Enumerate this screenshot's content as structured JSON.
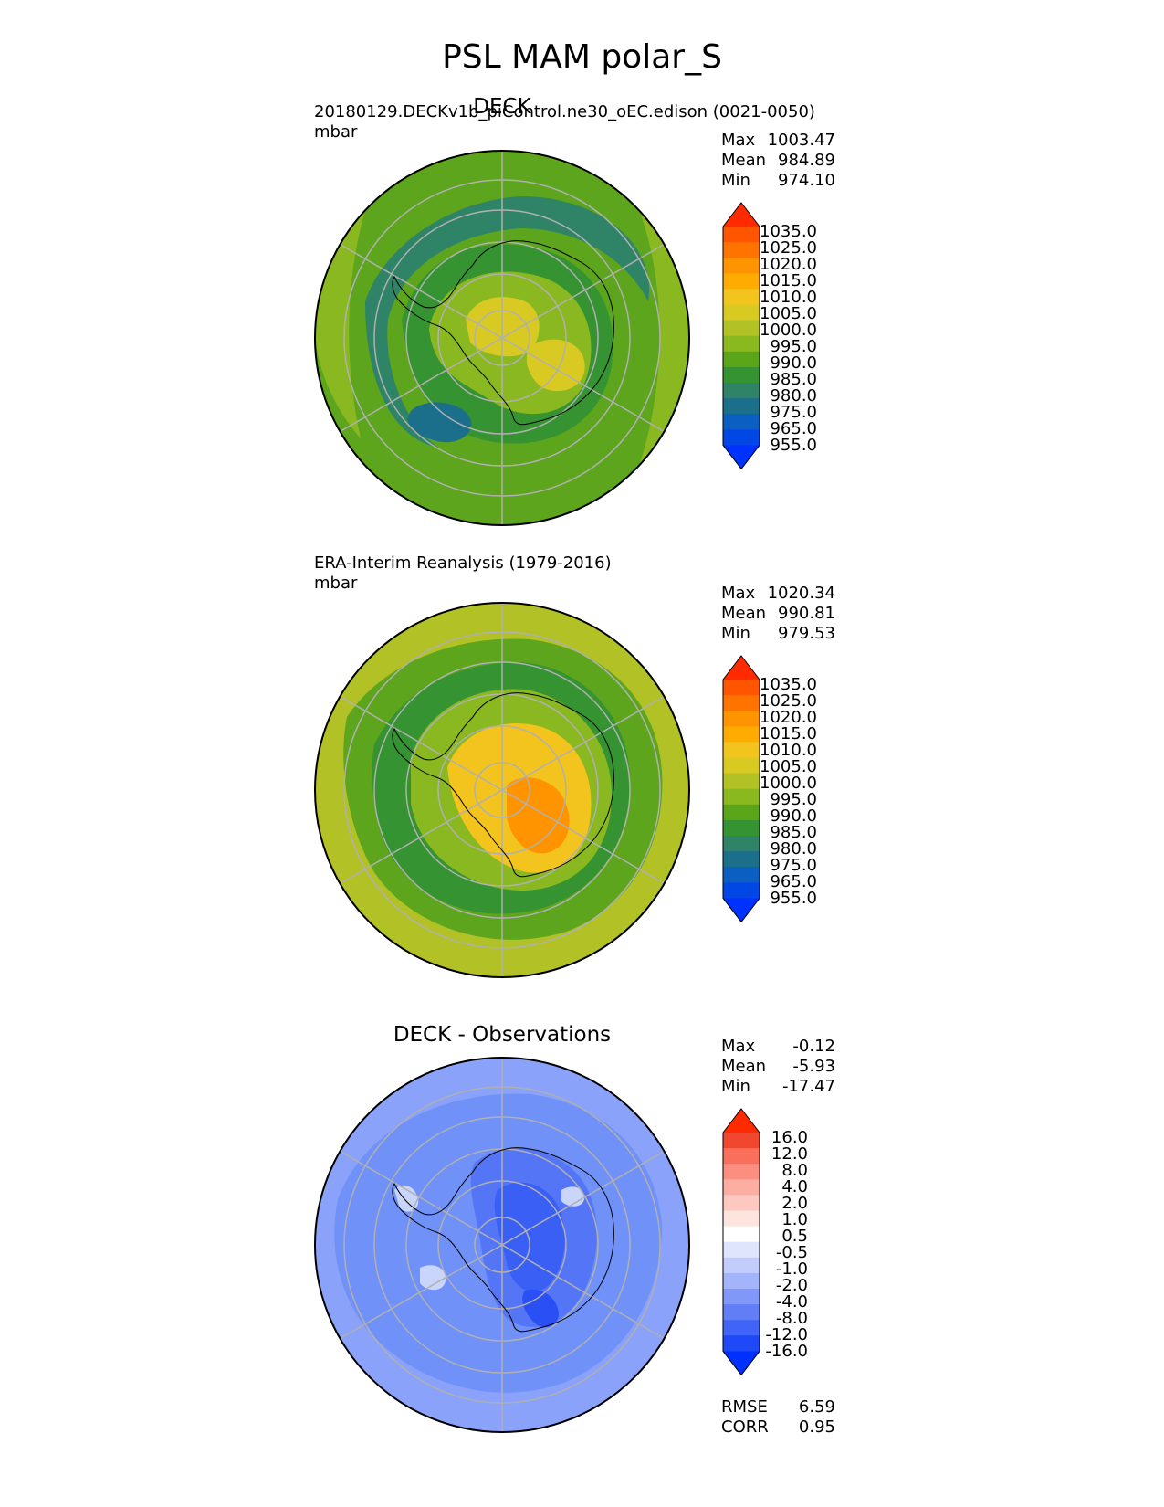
{
  "figure": {
    "title": "PSL MAM polar_S",
    "panels": [
      {
        "id": "test",
        "center_title": "DECK",
        "left_title": "20180129.DECKv1b_piControl.ne30_oEC.edison (0021-0050)",
        "units": "mbar",
        "stats": [
          {
            "label": "Max",
            "value": "1003.47"
          },
          {
            "label": "Mean",
            "value": "984.89"
          },
          {
            "label": "Min",
            "value": "974.10"
          }
        ],
        "colorbar": {
          "levels": [
            "1035.0",
            "1025.0",
            "1020.0",
            "1015.0",
            "1010.0",
            "1005.0",
            "1000.0",
            "995.0",
            "990.0",
            "985.0",
            "980.0",
            "975.0",
            "965.0",
            "955.0"
          ],
          "colors": [
            "#ff2a00",
            "#ff5400",
            "#ff7400",
            "#ff9400",
            "#ffab00",
            "#f3c41d",
            "#d9ca23",
            "#b1c126",
            "#8ab81f",
            "#5aa51a",
            "#359331",
            "#2f8468",
            "#1b6f8b",
            "#0a5fc0",
            "#0047e6",
            "#0032ff"
          ]
        },
        "map_fills": [
          "#5ca51c",
          "#8ab820",
          "#359331",
          "#2f8468",
          "#d9ca23",
          "#1b6f8b"
        ]
      },
      {
        "id": "reference",
        "center_title": "",
        "left_title": "ERA-Interim Reanalysis (1979-2016)",
        "units": "mbar",
        "stats": [
          {
            "label": "Max",
            "value": "1020.34"
          },
          {
            "label": "Mean",
            "value": "990.81"
          },
          {
            "label": "Min",
            "value": "979.53"
          }
        ],
        "colorbar": {
          "levels": [
            "1035.0",
            "1025.0",
            "1020.0",
            "1015.0",
            "1010.0",
            "1005.0",
            "1000.0",
            "995.0",
            "990.0",
            "985.0",
            "980.0",
            "975.0",
            "965.0",
            "955.0"
          ],
          "colors": [
            "#ff2a00",
            "#ff5400",
            "#ff7400",
            "#ff9400",
            "#ffab00",
            "#f3c41d",
            "#d9ca23",
            "#b1c126",
            "#8ab81f",
            "#5aa51a",
            "#359331",
            "#2f8468",
            "#1b6f8b",
            "#0a5fc0",
            "#0047e6",
            "#0032ff"
          ]
        },
        "map_fills": [
          "#b1c126",
          "#8ab820",
          "#5ca51c",
          "#359331",
          "#f3c41d",
          "#ff9400"
        ]
      },
      {
        "id": "diff",
        "center_title": "DECK - Observations",
        "left_title": "",
        "units": "",
        "stats": [
          {
            "label": "Max",
            "value": "-0.12"
          },
          {
            "label": "Mean",
            "value": "-5.93"
          },
          {
            "label": "Min",
            "value": "-17.47"
          }
        ],
        "metrics": [
          {
            "label": "RMSE",
            "value": "6.59"
          },
          {
            "label": "CORR",
            "value": "0.95"
          }
        ],
        "colorbar": {
          "levels": [
            "16.0",
            "12.0",
            "8.0",
            "4.0",
            "2.0",
            "1.0",
            "0.5",
            "-0.5",
            "-1.0",
            "-2.0",
            "-4.0",
            "-8.0",
            "-12.0",
            "-16.0"
          ],
          "colors": [
            "#ff2a00",
            "#f2472f",
            "#f8705b",
            "#fb8e7f",
            "#fcaea2",
            "#fdc8c0",
            "#fde4df",
            "#ffffff",
            "#dfe5fd",
            "#c2cdfb",
            "#a4b4fa",
            "#8198f8",
            "#617ef7",
            "#4064f7",
            "#1f48f7",
            "#0030ff"
          ]
        },
        "map_fills": [
          "#8aa2f9",
          "#7091f8",
          "#5476f6",
          "#3a5ff5",
          "#2a4ff5",
          "#c9d5fb"
        ]
      }
    ]
  }
}
